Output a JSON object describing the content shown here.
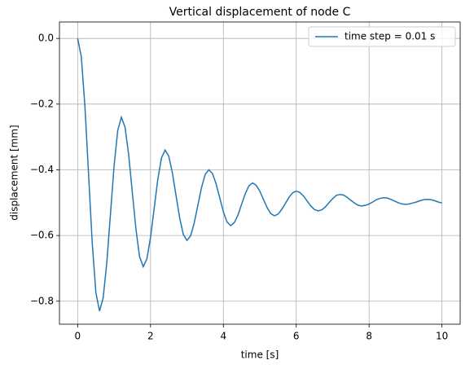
{
  "chart_data": {
    "type": "line",
    "title": "Vertical displacement of node C",
    "xlabel": "time [s]",
    "ylabel": "displacement [mm]",
    "x": [
      0,
      0.1,
      0.2,
      0.3,
      0.4,
      0.5,
      0.6,
      0.7,
      0.8,
      0.9,
      1.0,
      1.1,
      1.2,
      1.3,
      1.4,
      1.5,
      1.6,
      1.7,
      1.8,
      1.9,
      2.0,
      2.1,
      2.2,
      2.3,
      2.4,
      2.5,
      2.6,
      2.7,
      2.8,
      2.9,
      3.0,
      3.1,
      3.2,
      3.3,
      3.4,
      3.5,
      3.6,
      3.7,
      3.8,
      3.9,
      4.0,
      4.1,
      4.2,
      4.3,
      4.4,
      4.5,
      4.6,
      4.7,
      4.8,
      4.9,
      5.0,
      5.1,
      5.2,
      5.3,
      5.4,
      5.5,
      5.6,
      5.7,
      5.8,
      5.9,
      6.0,
      6.1,
      6.2,
      6.3,
      6.4,
      6.5,
      6.6,
      6.7,
      6.8,
      6.9,
      7.0,
      7.1,
      7.2,
      7.3,
      7.4,
      7.5,
      7.6,
      7.7,
      7.8,
      7.9,
      8.0,
      8.1,
      8.2,
      8.3,
      8.4,
      8.5,
      8.6,
      8.7,
      8.8,
      8.9,
      9.0,
      9.1,
      9.2,
      9.3,
      9.4,
      9.5,
      9.6,
      9.7,
      9.8,
      9.9,
      10.0
    ],
    "series": [
      {
        "name": "time step = 0.01 s",
        "color": "#1f77b4",
        "values": [
          0,
          -0.056,
          -0.208,
          -0.415,
          -0.623,
          -0.774,
          -0.83,
          -0.79,
          -0.683,
          -0.535,
          -0.388,
          -0.28,
          -0.24,
          -0.27,
          -0.354,
          -0.468,
          -0.581,
          -0.665,
          -0.695,
          -0.671,
          -0.606,
          -0.518,
          -0.429,
          -0.364,
          -0.34,
          -0.358,
          -0.409,
          -0.478,
          -0.546,
          -0.597,
          -0.615,
          -0.601,
          -0.561,
          -0.508,
          -0.454,
          -0.414,
          -0.4,
          -0.411,
          -0.443,
          -0.485,
          -0.528,
          -0.559,
          -0.57,
          -0.561,
          -0.538,
          -0.505,
          -0.473,
          -0.449,
          -0.44,
          -0.447,
          -0.465,
          -0.49,
          -0.515,
          -0.533,
          -0.54,
          -0.535,
          -0.521,
          -0.503,
          -0.484,
          -0.47,
          -0.465,
          -0.469,
          -0.48,
          -0.495,
          -0.51,
          -0.521,
          -0.525,
          -0.522,
          -0.513,
          -0.5,
          -0.488,
          -0.478,
          -0.475,
          -0.477,
          -0.484,
          -0.493,
          -0.501,
          -0.508,
          -0.51,
          -0.508,
          -0.504,
          -0.498,
          -0.491,
          -0.487,
          -0.485,
          -0.486,
          -0.49,
          -0.495,
          -0.5,
          -0.504,
          -0.505,
          -0.504,
          -0.501,
          -0.498,
          -0.494,
          -0.491,
          -0.49,
          -0.491,
          -0.494,
          -0.498,
          -0.501
        ]
      }
    ],
    "xlim": [
      -0.5,
      10.5
    ],
    "ylim": [
      -0.87,
      0.05
    ],
    "xticks": [
      0,
      2,
      4,
      6,
      8,
      10
    ],
    "yticks": [
      {
        "value": -0.8,
        "label": "−0.8"
      },
      {
        "value": -0.6,
        "label": "−0.6"
      },
      {
        "value": -0.4,
        "label": "−0.4"
      },
      {
        "value": -0.2,
        "label": "−0.2"
      },
      {
        "value": 0.0,
        "label": "0.0"
      }
    ],
    "grid": true,
    "legend": "upper right"
  }
}
